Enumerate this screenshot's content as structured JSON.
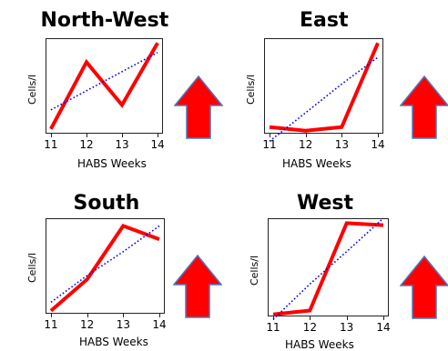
{
  "chart_data": [
    {
      "type": "line",
      "title": "North-West",
      "xlabel": "HABS Weeks",
      "ylabel": "Cells/l",
      "x": [
        11,
        12,
        13,
        14
      ],
      "series": [
        {
          "kind": "observed",
          "color": "#ff0000",
          "values": [
            0.05,
            0.75,
            0.3,
            0.95
          ]
        },
        {
          "kind": "trend",
          "color": "#0000ff",
          "style": "dotted",
          "values": [
            0.25,
            0.45,
            0.65,
            0.85
          ]
        }
      ],
      "xlim": [
        10.85,
        14.15
      ],
      "ylim": [
        0,
        1
      ],
      "trend_indicator": "up-arrow",
      "trend_indicator_color": "#ff0000"
    },
    {
      "type": "line",
      "title": "East",
      "xlabel": "HABS Weeks",
      "ylabel": "Cells/l",
      "x": [
        11,
        12,
        13,
        14
      ],
      "series": [
        {
          "kind": "observed",
          "color": "#ff0000",
          "values": [
            0.07,
            0.03,
            0.07,
            0.95
          ]
        },
        {
          "kind": "trend",
          "color": "#0000ff",
          "style": "dotted",
          "values": [
            -0.08,
            0.22,
            0.52,
            0.8
          ]
        }
      ],
      "xlim": [
        10.85,
        14.15
      ],
      "ylim": [
        0,
        1
      ],
      "trend_indicator": "up-arrow",
      "trend_indicator_color": "#ff0000"
    },
    {
      "type": "line",
      "title": "South",
      "xlabel": "HABS Weeks",
      "ylabel": "Cells/l",
      "x": [
        11,
        12,
        13,
        14
      ],
      "series": [
        {
          "kind": "observed",
          "color": "#ff0000",
          "values": [
            0.03,
            0.36,
            0.92,
            0.78
          ]
        },
        {
          "kind": "trend",
          "color": "#0000ff",
          "style": "dotted",
          "values": [
            0.12,
            0.4,
            0.65,
            0.92
          ]
        }
      ],
      "xlim": [
        10.85,
        14.15
      ],
      "ylim": [
        0,
        1
      ],
      "trend_indicator": "up-arrow",
      "trend_indicator_color": "#ff0000"
    },
    {
      "type": "line",
      "title": "West",
      "xlabel": "HABS Weeks",
      "ylabel": "Cells/l",
      "x": [
        11,
        12,
        13,
        14
      ],
      "series": [
        {
          "kind": "observed",
          "color": "#ff0000",
          "values": [
            0.02,
            0.06,
            0.95,
            0.93
          ]
        },
        {
          "kind": "trend",
          "color": "#0000ff",
          "style": "dotted",
          "values": [
            -0.03,
            0.33,
            0.66,
            1.0
          ]
        }
      ],
      "xlim": [
        10.85,
        14.15
      ],
      "ylim": [
        0,
        1
      ],
      "trend_indicator": "up-arrow",
      "trend_indicator_color": "#ff0000"
    }
  ]
}
